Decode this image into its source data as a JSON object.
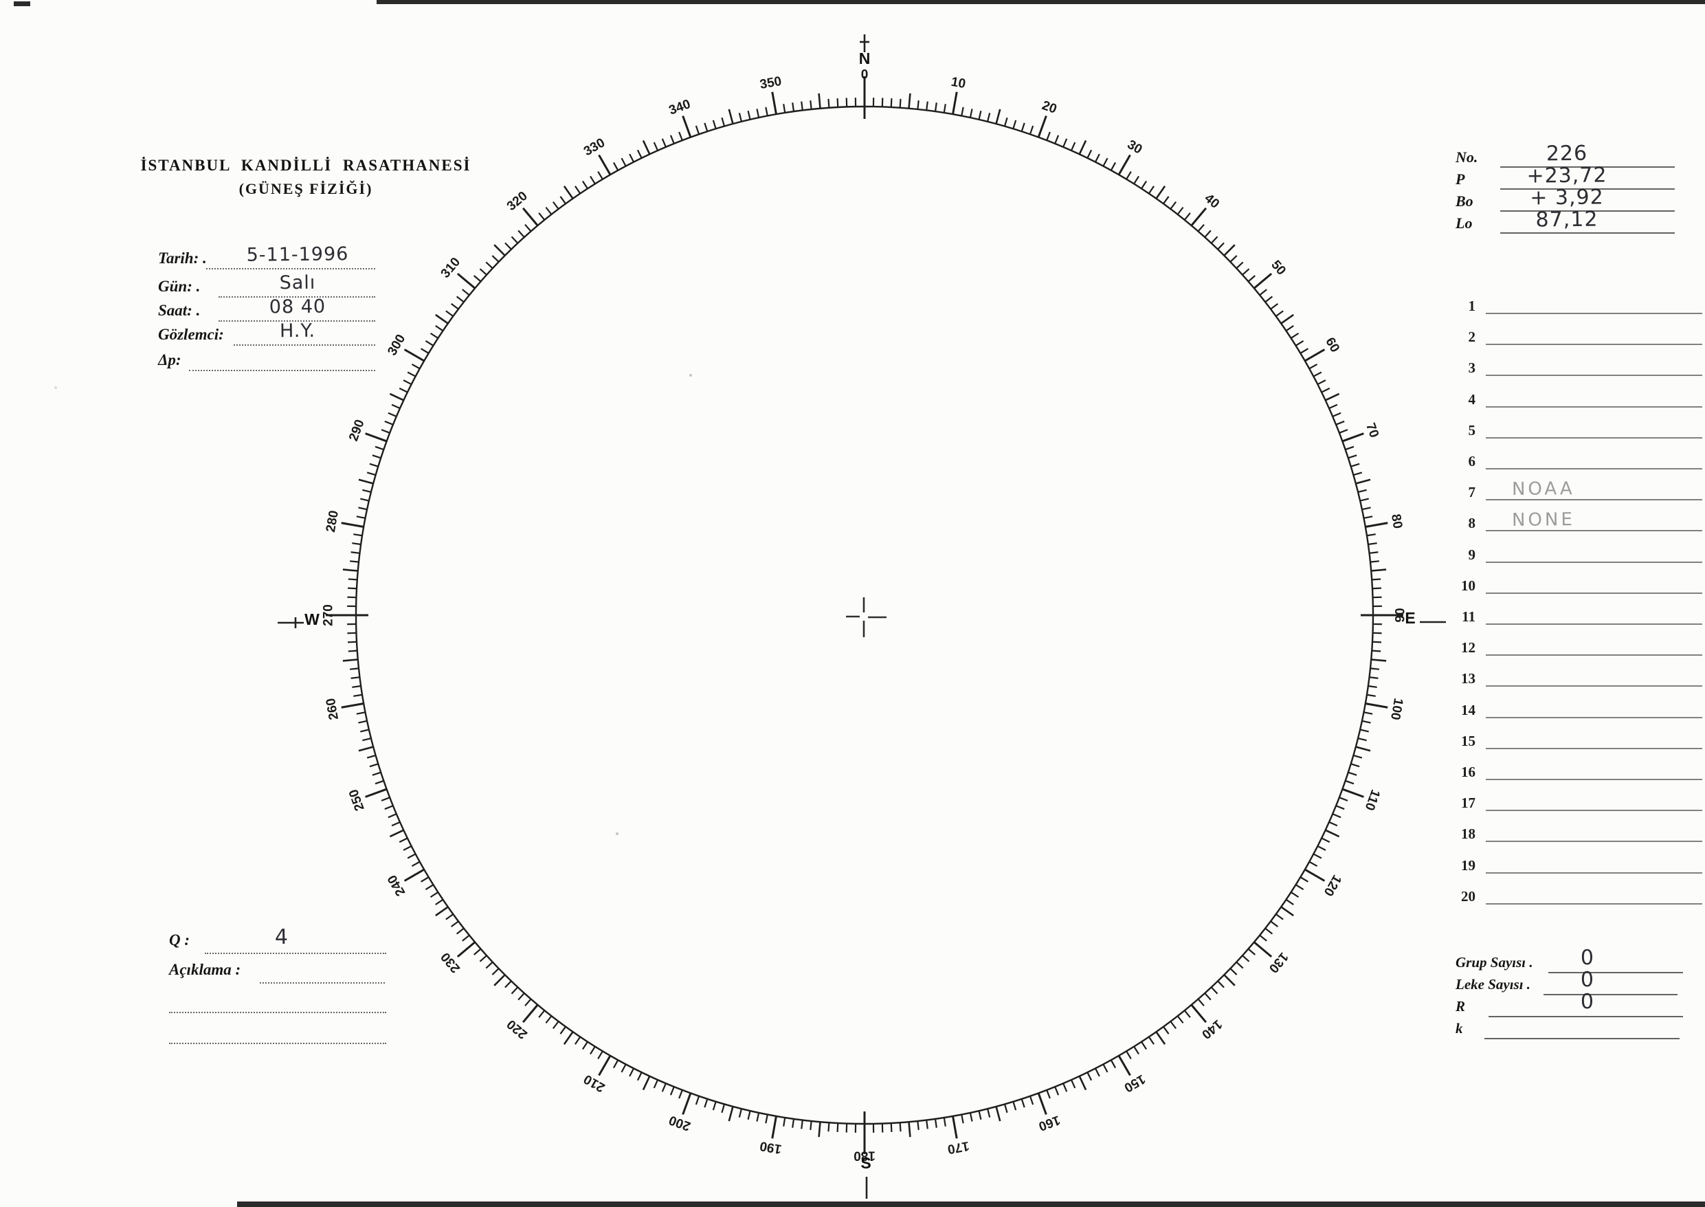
{
  "header": {
    "title": "İSTANBUL KANDİLLİ RASATHANESİ",
    "subtitle": "(GÜNEŞ FİZİĞİ)"
  },
  "observation": {
    "fields": [
      {
        "label": "Tarih: .",
        "value": "5-11-1996"
      },
      {
        "label": "Gün: .",
        "value": "Salı"
      },
      {
        "label": "Saat: .",
        "value": "08 40"
      },
      {
        "label": "Gözlemci:",
        "value": "H.Y."
      },
      {
        "label": "Δp:",
        "value": ""
      }
    ]
  },
  "ephemeris": {
    "fields": [
      {
        "label": "No.",
        "value": "226"
      },
      {
        "label": "P",
        "value": "+23,72"
      },
      {
        "label": "Bo",
        "value": "+ 3,92"
      },
      {
        "label": "Lo",
        "value": "87,12"
      }
    ]
  },
  "region_list": {
    "rows": [
      {
        "num": "1",
        "value": ""
      },
      {
        "num": "2",
        "value": ""
      },
      {
        "num": "3",
        "value": ""
      },
      {
        "num": "4",
        "value": ""
      },
      {
        "num": "5",
        "value": ""
      },
      {
        "num": "6",
        "value": ""
      },
      {
        "num": "7",
        "value": "NOAA"
      },
      {
        "num": "8",
        "value": "NONE"
      },
      {
        "num": "9",
        "value": ""
      },
      {
        "num": "10",
        "value": ""
      },
      {
        "num": "11",
        "value": ""
      },
      {
        "num": "12",
        "value": ""
      },
      {
        "num": "13",
        "value": ""
      },
      {
        "num": "14",
        "value": ""
      },
      {
        "num": "15",
        "value": ""
      },
      {
        "num": "16",
        "value": ""
      },
      {
        "num": "17",
        "value": ""
      },
      {
        "num": "18",
        "value": ""
      },
      {
        "num": "19",
        "value": ""
      },
      {
        "num": "20",
        "value": ""
      }
    ]
  },
  "summary": {
    "fields": [
      {
        "label": "Grup Sayısı .",
        "value": "0"
      },
      {
        "label": "Leke Sayısı .",
        "value": "0"
      },
      {
        "label": "R",
        "value": "0"
      },
      {
        "label": "k",
        "value": ""
      }
    ]
  },
  "quality": {
    "q_label": "Q :",
    "q_value": "4",
    "aciklama_label": "Açıklama :",
    "aciklama_value": ""
  },
  "dial": {
    "type": "protractor-disk",
    "degrees_min": 0,
    "degrees_max": 360,
    "minor_tick_step": 1,
    "medium_tick_step": 5,
    "label_step": 10,
    "degree_labels": [
      "0",
      "10",
      "20",
      "30",
      "40",
      "50",
      "60",
      "70",
      "80",
      "90",
      "100",
      "110",
      "120",
      "130",
      "140",
      "150",
      "160",
      "170",
      "180",
      "190",
      "200",
      "210",
      "220",
      "230",
      "240",
      "250",
      "260",
      "270",
      "280",
      "290",
      "300",
      "310",
      "320",
      "330",
      "340",
      "350"
    ],
    "cardinals": [
      {
        "letter": "N",
        "deg": 0
      },
      {
        "letter": "E",
        "deg": 90
      },
      {
        "letter": "S",
        "deg": 180
      },
      {
        "letter": "W",
        "deg": 270
      }
    ],
    "ink_color": "#1e1e1e"
  }
}
